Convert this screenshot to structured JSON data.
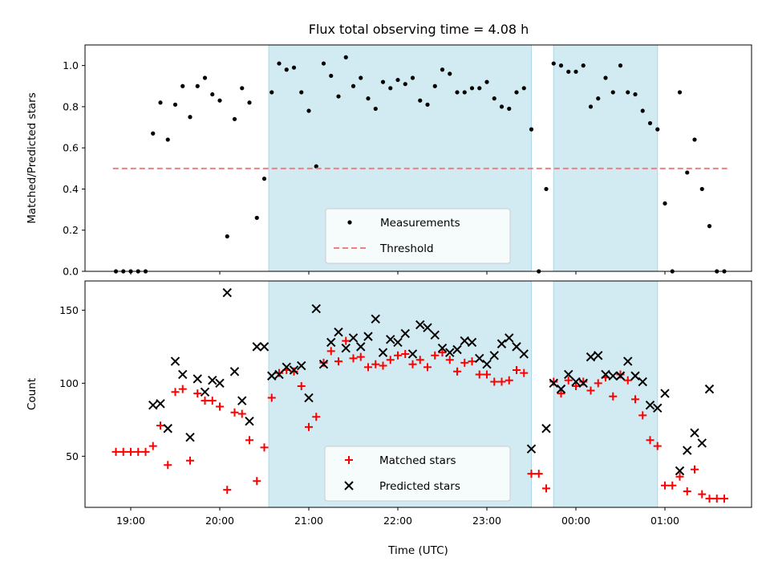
{
  "title": "Flux total observing time = 4.08 h",
  "colors": {
    "night_shade": "#add8e6",
    "measurement": "#000000",
    "threshold": "#f08080",
    "matched": "#ff0000",
    "predicted": "#000000"
  },
  "chart_data": [
    {
      "type": "scatter",
      "panel": "top",
      "ylabel": "Matched/Predicted stars",
      "xlabel": "",
      "ylim": [
        0,
        1.1
      ],
      "yticks": [
        "0.0",
        "0.2",
        "0.4",
        "0.6",
        "0.8",
        "1.0"
      ],
      "grid": false,
      "legend_position": "bottom-center",
      "shaded_spans": [
        [
          "20:33",
          "23:30"
        ],
        [
          "23:45",
          "00:55"
        ]
      ],
      "series": [
        {
          "name": "Measurements",
          "marker": "dot",
          "points": [
            [
              "18:50",
              0.0
            ],
            [
              "18:55",
              0.0
            ],
            [
              "19:00",
              0.0
            ],
            [
              "19:05",
              0.0
            ],
            [
              "19:10",
              0.0
            ],
            [
              "19:15",
              0.67
            ],
            [
              "19:20",
              0.82
            ],
            [
              "19:25",
              0.64
            ],
            [
              "19:30",
              0.81
            ],
            [
              "19:35",
              0.9
            ],
            [
              "19:40",
              0.75
            ],
            [
              "19:45",
              0.9
            ],
            [
              "19:50",
              0.94
            ],
            [
              "19:55",
              0.86
            ],
            [
              "20:00",
              0.83
            ],
            [
              "20:05",
              0.17
            ],
            [
              "20:10",
              0.74
            ],
            [
              "20:15",
              0.89
            ],
            [
              "20:20",
              0.82
            ],
            [
              "20:25",
              0.26
            ],
            [
              "20:30",
              0.45
            ],
            [
              "20:35",
              0.87
            ],
            [
              "20:40",
              1.01
            ],
            [
              "20:45",
              0.98
            ],
            [
              "20:50",
              0.99
            ],
            [
              "20:55",
              0.87
            ],
            [
              "21:00",
              0.78
            ],
            [
              "21:05",
              0.51
            ],
            [
              "21:10",
              1.01
            ],
            [
              "21:15",
              0.95
            ],
            [
              "21:20",
              0.85
            ],
            [
              "21:25",
              1.04
            ],
            [
              "21:30",
              0.9
            ],
            [
              "21:35",
              0.94
            ],
            [
              "21:40",
              0.84
            ],
            [
              "21:45",
              0.79
            ],
            [
              "21:50",
              0.92
            ],
            [
              "21:55",
              0.89
            ],
            [
              "22:00",
              0.93
            ],
            [
              "22:05",
              0.91
            ],
            [
              "22:10",
              0.94
            ],
            [
              "22:15",
              0.83
            ],
            [
              "22:20",
              0.81
            ],
            [
              "22:25",
              0.9
            ],
            [
              "22:30",
              0.98
            ],
            [
              "22:35",
              0.96
            ],
            [
              "22:40",
              0.87
            ],
            [
              "22:45",
              0.87
            ],
            [
              "22:50",
              0.89
            ],
            [
              "22:55",
              0.89
            ],
            [
              "23:00",
              0.92
            ],
            [
              "23:05",
              0.84
            ],
            [
              "23:10",
              0.8
            ],
            [
              "23:15",
              0.79
            ],
            [
              "23:20",
              0.87
            ],
            [
              "23:25",
              0.89
            ],
            [
              "23:30",
              0.69
            ],
            [
              "23:35",
              0.0
            ],
            [
              "23:40",
              0.4
            ],
            [
              "23:45",
              1.01
            ],
            [
              "23:50",
              1.0
            ],
            [
              "23:55",
              0.97
            ],
            [
              "00:00",
              0.97
            ],
            [
              "00:05",
              1.0
            ],
            [
              "00:10",
              0.8
            ],
            [
              "00:15",
              0.84
            ],
            [
              "00:20",
              0.94
            ],
            [
              "00:25",
              0.87
            ],
            [
              "00:30",
              1.0
            ],
            [
              "00:35",
              0.87
            ],
            [
              "00:40",
              0.86
            ],
            [
              "00:45",
              0.78
            ],
            [
              "00:50",
              0.72
            ],
            [
              "00:55",
              0.69
            ],
            [
              "01:00",
              0.33
            ],
            [
              "01:05",
              0.0
            ],
            [
              "01:10",
              0.87
            ],
            [
              "01:15",
              0.48
            ],
            [
              "01:20",
              0.64
            ],
            [
              "01:25",
              0.4
            ],
            [
              "01:30",
              0.22
            ],
            [
              "01:35",
              0.0
            ],
            [
              "01:40",
              0.0
            ]
          ]
        },
        {
          "name": "Threshold",
          "style": "dashed",
          "points": [
            [
              "18:48",
              0.5
            ],
            [
              "01:42",
              0.5
            ]
          ]
        }
      ]
    },
    {
      "type": "scatter",
      "panel": "bottom",
      "ylabel": "Count",
      "xlabel": "Time (UTC)",
      "ylim": [
        15,
        170
      ],
      "yticks": [
        "50",
        "100",
        "150"
      ],
      "xticks": [
        "19:00",
        "20:00",
        "21:00",
        "22:00",
        "23:00",
        "00:00",
        "01:00"
      ],
      "grid": false,
      "legend_position": "bottom-center",
      "shaded_spans": [
        [
          "20:33",
          "23:30"
        ],
        [
          "23:45",
          "00:55"
        ]
      ],
      "series": [
        {
          "name": "Matched stars",
          "marker": "plus",
          "points": [
            [
              "18:50",
              53
            ],
            [
              "18:55",
              53
            ],
            [
              "19:00",
              53
            ],
            [
              "19:05",
              53
            ],
            [
              "19:10",
              53
            ],
            [
              "19:15",
              57
            ],
            [
              "19:20",
              71
            ],
            [
              "19:25",
              44
            ],
            [
              "19:30",
              94
            ],
            [
              "19:35",
              96
            ],
            [
              "19:40",
              47
            ],
            [
              "19:45",
              93
            ],
            [
              "19:50",
              88
            ],
            [
              "19:55",
              88
            ],
            [
              "20:00",
              84
            ],
            [
              "20:05",
              27
            ],
            [
              "20:10",
              80
            ],
            [
              "20:15",
              79
            ],
            [
              "20:20",
              61
            ],
            [
              "20:25",
              33
            ],
            [
              "20:30",
              56
            ],
            [
              "20:35",
              90
            ],
            [
              "20:40",
              107
            ],
            [
              "20:45",
              109
            ],
            [
              "20:50",
              108
            ],
            [
              "20:55",
              98
            ],
            [
              "21:00",
              70
            ],
            [
              "21:05",
              77
            ],
            [
              "21:10",
              114
            ],
            [
              "21:15",
              122
            ],
            [
              "21:20",
              115
            ],
            [
              "21:25",
              129
            ],
            [
              "21:30",
              117
            ],
            [
              "21:35",
              118
            ],
            [
              "21:40",
              111
            ],
            [
              "21:45",
              113
            ],
            [
              "21:50",
              112
            ],
            [
              "21:55",
              116
            ],
            [
              "22:00",
              119
            ],
            [
              "22:05",
              120
            ],
            [
              "22:10",
              113
            ],
            [
              "22:15",
              116
            ],
            [
              "22:20",
              111
            ],
            [
              "22:25",
              119
            ],
            [
              "22:30",
              121
            ],
            [
              "22:35",
              116
            ],
            [
              "22:40",
              108
            ],
            [
              "22:45",
              114
            ],
            [
              "22:50",
              115
            ],
            [
              "22:55",
              106
            ],
            [
              "23:00",
              106
            ],
            [
              "23:05",
              101
            ],
            [
              "23:10",
              101
            ],
            [
              "23:15",
              102
            ],
            [
              "23:20",
              109
            ],
            [
              "23:25",
              107
            ],
            [
              "23:30",
              38
            ],
            [
              "23:35",
              38
            ],
            [
              "23:40",
              28
            ],
            [
              "23:45",
              101
            ],
            [
              "23:50",
              93
            ],
            [
              "23:55",
              102
            ],
            [
              "00:00",
              98
            ],
            [
              "00:05",
              101
            ],
            [
              "00:10",
              95
            ],
            [
              "00:15",
              100
            ],
            [
              "00:20",
              104
            ],
            [
              "00:25",
              91
            ],
            [
              "00:30",
              106
            ],
            [
              "00:35",
              102
            ],
            [
              "00:40",
              89
            ],
            [
              "00:45",
              78
            ],
            [
              "00:50",
              61
            ],
            [
              "00:55",
              57
            ],
            [
              "01:00",
              30
            ],
            [
              "01:05",
              30
            ],
            [
              "01:10",
              36
            ],
            [
              "01:15",
              26
            ],
            [
              "01:20",
              41
            ],
            [
              "01:25",
              24
            ],
            [
              "01:30",
              21
            ],
            [
              "01:35",
              21
            ],
            [
              "01:40",
              21
            ]
          ]
        },
        {
          "name": "Predicted stars",
          "marker": "x",
          "points": [
            [
              "19:15",
              85
            ],
            [
              "19:20",
              86
            ],
            [
              "19:25",
              69
            ],
            [
              "19:30",
              115
            ],
            [
              "19:35",
              106
            ],
            [
              "19:40",
              63
            ],
            [
              "19:45",
              103
            ],
            [
              "19:50",
              94
            ],
            [
              "19:55",
              102
            ],
            [
              "20:00",
              100
            ],
            [
              "20:05",
              162
            ],
            [
              "20:10",
              108
            ],
            [
              "20:15",
              88
            ],
            [
              "20:20",
              74
            ],
            [
              "20:25",
              125
            ],
            [
              "20:30",
              125
            ],
            [
              "20:35",
              105
            ],
            [
              "20:40",
              106
            ],
            [
              "20:45",
              111
            ],
            [
              "20:50",
              109
            ],
            [
              "20:55",
              112
            ],
            [
              "21:00",
              90
            ],
            [
              "21:05",
              151
            ],
            [
              "21:10",
              113
            ],
            [
              "21:15",
              128
            ],
            [
              "21:20",
              135
            ],
            [
              "21:25",
              124
            ],
            [
              "21:30",
              131
            ],
            [
              "21:35",
              125
            ],
            [
              "21:40",
              132
            ],
            [
              "21:45",
              144
            ],
            [
              "21:50",
              121
            ],
            [
              "21:55",
              130
            ],
            [
              "22:00",
              128
            ],
            [
              "22:05",
              134
            ],
            [
              "22:10",
              120
            ],
            [
              "22:15",
              140
            ],
            [
              "22:20",
              138
            ],
            [
              "22:25",
              133
            ],
            [
              "22:30",
              124
            ],
            [
              "22:35",
              121
            ],
            [
              "22:40",
              123
            ],
            [
              "22:45",
              129
            ],
            [
              "22:50",
              128
            ],
            [
              "22:55",
              117
            ],
            [
              "23:00",
              113
            ],
            [
              "23:05",
              119
            ],
            [
              "23:10",
              127
            ],
            [
              "23:15",
              131
            ],
            [
              "23:20",
              125
            ],
            [
              "23:25",
              120
            ],
            [
              "23:30",
              55
            ],
            [
              "23:40",
              69
            ],
            [
              "23:45",
              100
            ],
            [
              "23:50",
              96
            ],
            [
              "23:55",
              106
            ],
            [
              "00:00",
              101
            ],
            [
              "00:05",
              100
            ],
            [
              "00:10",
              118
            ],
            [
              "00:15",
              119
            ],
            [
              "00:20",
              106
            ],
            [
              "00:25",
              105
            ],
            [
              "00:30",
              105
            ],
            [
              "00:35",
              115
            ],
            [
              "00:40",
              105
            ],
            [
              "00:45",
              101
            ],
            [
              "00:50",
              85
            ],
            [
              "00:55",
              83
            ],
            [
              "01:00",
              93
            ],
            [
              "01:10",
              40
            ],
            [
              "01:15",
              54
            ],
            [
              "01:20",
              66
            ],
            [
              "01:25",
              59
            ],
            [
              "01:30",
              96
            ]
          ]
        }
      ]
    }
  ]
}
